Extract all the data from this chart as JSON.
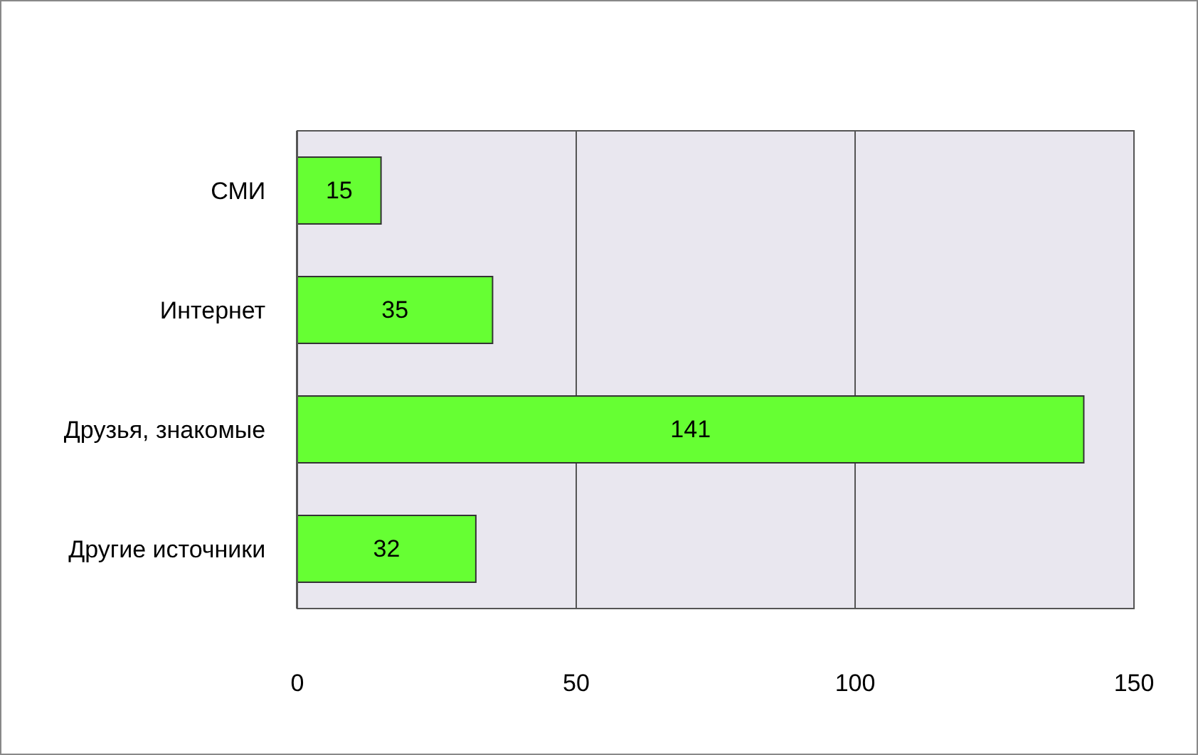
{
  "chart_data": {
    "type": "bar",
    "orientation": "horizontal",
    "categories": [
      "СМИ",
      "Интернет",
      "Друзья, знакомые",
      "Другие источники"
    ],
    "values": [
      15,
      35,
      141,
      32
    ],
    "color": "#66ff33",
    "xlim": [
      0,
      150
    ],
    "xticks": [
      0,
      50,
      100,
      150
    ],
    "grid": "x",
    "data_labels": true
  }
}
